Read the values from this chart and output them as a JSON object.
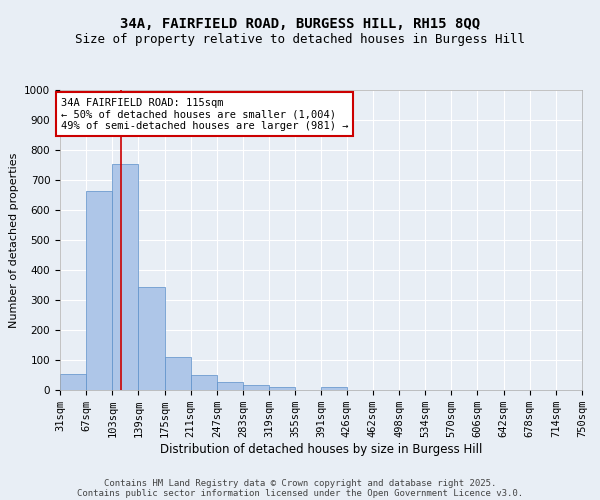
{
  "title1": "34A, FAIRFIELD ROAD, BURGESS HILL, RH15 8QQ",
  "title2": "Size of property relative to detached houses in Burgess Hill",
  "xlabel": "Distribution of detached houses by size in Burgess Hill",
  "ylabel": "Number of detached properties",
  "bin_edges": [
    31,
    67,
    103,
    139,
    175,
    211,
    247,
    283,
    319,
    355,
    391,
    426,
    462,
    498,
    534,
    570,
    606,
    642,
    678,
    714,
    750
  ],
  "bar_heights": [
    55,
    665,
    755,
    345,
    110,
    50,
    28,
    18,
    10,
    0,
    10,
    0,
    0,
    0,
    0,
    0,
    0,
    0,
    0,
    0
  ],
  "bar_color": "#aec6e8",
  "bar_edge_color": "#5b8fc9",
  "vline_x": 115,
  "vline_color": "#cc0000",
  "annotation_text": "34A FAIRFIELD ROAD: 115sqm\n← 50% of detached houses are smaller (1,004)\n49% of semi-detached houses are larger (981) →",
  "annotation_box_color": "#ffffff",
  "annotation_box_edge_color": "#cc0000",
  "ylim": [
    0,
    1000
  ],
  "yticks": [
    0,
    100,
    200,
    300,
    400,
    500,
    600,
    700,
    800,
    900,
    1000
  ],
  "bg_color": "#e8eef5",
  "plot_bg_color": "#e8eef5",
  "grid_color": "#ffffff",
  "footnote1": "Contains HM Land Registry data © Crown copyright and database right 2025.",
  "footnote2": "Contains public sector information licensed under the Open Government Licence v3.0.",
  "title1_fontsize": 10,
  "title2_fontsize": 9,
  "xlabel_fontsize": 8.5,
  "ylabel_fontsize": 8,
  "tick_fontsize": 7.5,
  "annotation_fontsize": 7.5,
  "footnote_fontsize": 6.5
}
